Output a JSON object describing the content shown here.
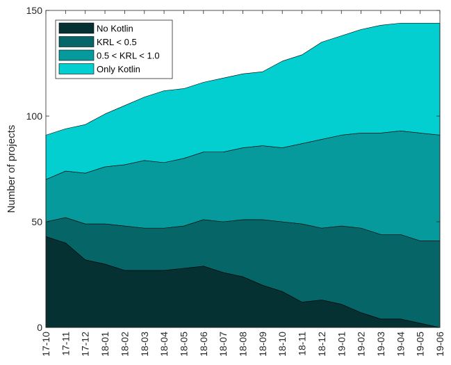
{
  "chart_data": {
    "type": "area",
    "stacked": true,
    "title": "",
    "xlabel": "",
    "ylabel": "Number of projects",
    "ylim": [
      0,
      150
    ],
    "yticks": [
      0,
      50,
      100,
      150
    ],
    "grid": false,
    "legend_position": "top-left",
    "categories": [
      "17-10",
      "17-11",
      "17-12",
      "18-01",
      "18-02",
      "18-03",
      "18-04",
      "18-05",
      "18-06",
      "18-07",
      "18-08",
      "18-09",
      "18-10",
      "18-11",
      "18-12",
      "19-01",
      "19-02",
      "19-03",
      "19-04",
      "19-05",
      "19-06"
    ],
    "series": [
      {
        "name": "No Kotlin",
        "color": "#053133",
        "values": [
          43,
          40,
          32,
          30,
          27,
          27,
          27,
          28,
          29,
          26,
          24,
          20,
          17,
          12,
          13,
          11,
          7,
          4,
          4,
          2,
          0
        ]
      },
      {
        "name": "KRL < 0.5",
        "color": "#066567",
        "values": [
          7,
          12,
          17,
          19,
          21,
          20,
          20,
          20,
          22,
          24,
          27,
          31,
          33,
          37,
          34,
          37,
          40,
          40,
          40,
          39,
          41
        ]
      },
      {
        "name": "0.5 < KRL < 1.0",
        "color": "#079a9c",
        "values": [
          20,
          22,
          24,
          27,
          29,
          32,
          31,
          32,
          32,
          33,
          34,
          35,
          35,
          38,
          42,
          43,
          45,
          48,
          49,
          51,
          50
        ]
      },
      {
        "name": "Only Kotlin",
        "color": "#03ced0",
        "values": [
          21,
          20,
          23,
          25,
          28,
          30,
          34,
          33,
          33,
          35,
          35,
          35,
          41,
          42,
          46,
          47,
          49,
          51,
          51,
          52,
          53
        ]
      }
    ]
  }
}
